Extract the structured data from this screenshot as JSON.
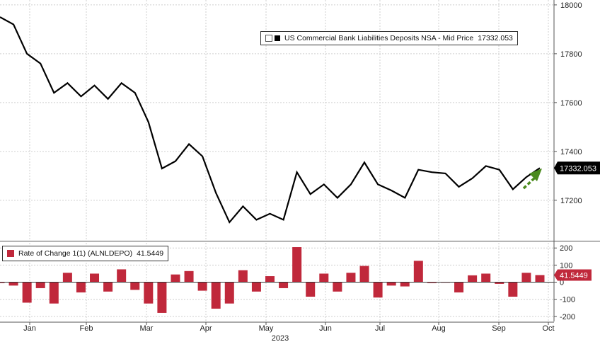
{
  "chart_data": [
    {
      "type": "line",
      "series": [
        {
          "name": "US Commercial Bank Liabilities Deposits NSA - Mid Price",
          "last_value": "17332.053",
          "color": "#000000",
          "values": [
            17950,
            17920,
            17800,
            17760,
            17640,
            17680,
            17625,
            17670,
            17615,
            17680,
            17640,
            17520,
            17330,
            17360,
            17430,
            17380,
            17230,
            17110,
            17175,
            17120,
            17145,
            17120,
            17315,
            17225,
            17265,
            17210,
            17265,
            17355,
            17265,
            17240,
            17210,
            17325,
            17315,
            17310,
            17255,
            17290,
            17340,
            17325,
            17245,
            17295,
            17332.053
          ]
        }
      ],
      "x_ticks": [
        "Jan",
        "Feb",
        "Mar",
        "Apr",
        "May",
        "Jun",
        "Jul",
        "Aug",
        "Sep",
        "Oct"
      ],
      "x_year": "2023",
      "y_ticks": [
        17200,
        17400,
        17600,
        17800,
        18000
      ],
      "ylim": [
        17040,
        18020
      ],
      "grid": true,
      "legend_position": "top-right",
      "annotation": "green dashed arrow pointing up"
    },
    {
      "type": "bar",
      "series": [
        {
          "name": "Rate of Change 1(1) (ALNLDEPO)",
          "last_value": "41.5449",
          "color": "#c0283b",
          "values": [
            -5,
            -20,
            -120,
            -35,
            -125,
            55,
            -60,
            50,
            -55,
            75,
            -45,
            -125,
            -180,
            45,
            65,
            -50,
            -155,
            -125,
            70,
            -55,
            35,
            -35,
            205,
            -85,
            50,
            -55,
            55,
            95,
            -90,
            -20,
            -25,
            125,
            -5,
            -3,
            -60,
            40,
            50,
            -10,
            -85,
            55,
            41.5449
          ]
        }
      ],
      "y_ticks": [
        200,
        100,
        0,
        -100,
        -200
      ],
      "y_tick_labels": [
        "200",
        "100",
        "0",
        "-100",
        "-200"
      ],
      "ylim": [
        -230,
        230
      ],
      "grid": true,
      "legend_position": "top-left"
    }
  ],
  "colors": {
    "line": "#000000",
    "bars": "#c0283b",
    "arrow": "#4a8a1c",
    "grid": "#cfcfcf"
  }
}
